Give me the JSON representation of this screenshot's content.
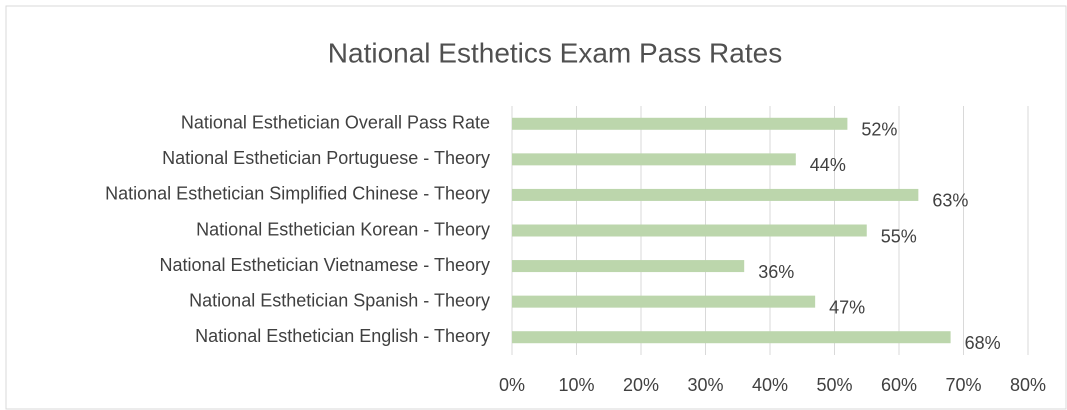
{
  "chart_data": {
    "type": "bar",
    "orientation": "horizontal",
    "title": "National Esthetics Exam Pass Rates",
    "categories": [
      "National Esthetician Overall Pass Rate",
      "National Esthetician Portuguese - Theory",
      "National Esthetician Simplified Chinese - Theory",
      "National Esthetician Korean - Theory",
      "National Esthetician Vietnamese - Theory",
      "National Esthetician Spanish - Theory",
      "National Esthetician English - Theory"
    ],
    "values": [
      52,
      44,
      63,
      55,
      36,
      47,
      68
    ],
    "value_labels": [
      "52%",
      "44%",
      "63%",
      "55%",
      "36%",
      "47%",
      "68%"
    ],
    "color": "#bcd6ac",
    "xlim": [
      0,
      80
    ],
    "xticks": [
      {
        "value": 0,
        "label": "0%"
      },
      {
        "value": 10,
        "label": "10%"
      },
      {
        "value": 20,
        "label": "20%"
      },
      {
        "value": 30,
        "label": "30%"
      },
      {
        "value": 40,
        "label": "40%"
      },
      {
        "value": 50,
        "label": "50%"
      },
      {
        "value": 60,
        "label": "60%"
      },
      {
        "value": 70,
        "label": "70%"
      },
      {
        "value": 80,
        "label": "80%"
      }
    ],
    "grid": true
  }
}
